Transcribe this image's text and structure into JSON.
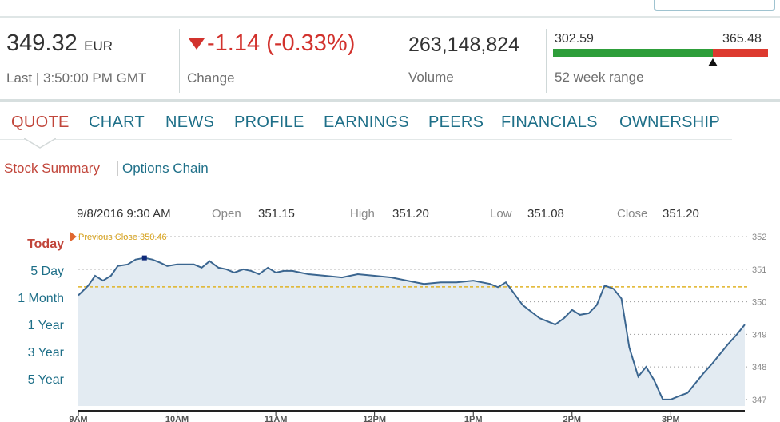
{
  "quote": {
    "price": "349.32",
    "currency": "EUR",
    "last_time": "Last | 3:50:00 PM GMT",
    "change": "-1.14 (-0.33%)",
    "change_label": "Change",
    "change_direction_icon": "triangle-down-icon",
    "volume": "263,148,824",
    "volume_label": "Volume",
    "week52_low": "302.59",
    "week52_high": "365.48",
    "week52_label": "52 week range",
    "week52_marker_icon": "triangle-up-icon"
  },
  "tabs": [
    "QUOTE",
    "CHART",
    "NEWS",
    "PROFILE",
    "EARNINGS",
    "PEERS",
    "FINANCIALS",
    "OWNERSHIP"
  ],
  "active_tab": "QUOTE",
  "subnav": {
    "stock_summary": "Stock Summary",
    "options_chain": "Options Chain"
  },
  "ohlc": {
    "datetime": "9/8/2016 9:30 AM",
    "open_label": "Open",
    "open": "351.15",
    "high_label": "High",
    "high": "351.20",
    "low_label": "Low",
    "low": "351.08",
    "close_label": "Close",
    "close": "351.20"
  },
  "ranges": [
    "Today",
    "5 Day",
    "1 Month",
    "1 Year",
    "3 Year",
    "5 Year"
  ],
  "active_range": "Today",
  "colors": {
    "accent_red": "#d2322d",
    "link_blue": "#1e6f88",
    "line": "#3b6690",
    "fill": "#e3ebf2",
    "prev_close": "#e0b325",
    "range_green": "#2e9e3a",
    "range_red": "#dd3a2f"
  },
  "chart_data": {
    "type": "area",
    "previous_close_label": "Previous Close 350.46",
    "previous_close": 350.46,
    "ylim": [
      346.8,
      352.2
    ],
    "y_ticks": [
      352,
      351,
      350,
      349,
      348,
      347
    ],
    "x_ticks": [
      "9AM",
      "10AM",
      "11AM",
      "12PM",
      "1PM",
      "2PM",
      "3PM"
    ],
    "x_tick_hours": [
      9,
      10,
      11,
      12,
      13,
      14,
      15
    ],
    "xlim": [
      9,
      15.75
    ],
    "grid": true,
    "series": [
      {
        "x": [
          9.0,
          9.1,
          9.17,
          9.25,
          9.33,
          9.4,
          9.5,
          9.58,
          9.67,
          9.75,
          9.83,
          9.9,
          10.0,
          10.17,
          10.25,
          10.33,
          10.42,
          10.5,
          10.58,
          10.67,
          10.75,
          10.83,
          10.92,
          11.0,
          11.08,
          11.17,
          11.25,
          11.33,
          11.5,
          11.67,
          11.83,
          12.0,
          12.17,
          12.33,
          12.5,
          12.67,
          12.83,
          13.0,
          13.17,
          13.25,
          13.33,
          13.5,
          13.67,
          13.83,
          13.92,
          14.0,
          14.08,
          14.17,
          14.25,
          14.33,
          14.42,
          14.5,
          14.58,
          14.67,
          14.75,
          14.83,
          14.92,
          15.0,
          15.08,
          15.17,
          15.25,
          15.33,
          15.42,
          15.5,
          15.58,
          15.67,
          15.75
        ],
        "values": [
          350.2,
          350.5,
          350.8,
          350.65,
          350.8,
          351.1,
          351.15,
          351.3,
          351.35,
          351.3,
          351.2,
          351.1,
          351.15,
          351.15,
          351.05,
          351.25,
          351.05,
          351.0,
          350.9,
          351.0,
          350.95,
          350.85,
          351.05,
          350.9,
          350.95,
          350.95,
          350.9,
          350.85,
          350.8,
          350.75,
          350.85,
          350.8,
          350.75,
          350.65,
          350.55,
          350.6,
          350.6,
          350.65,
          350.55,
          350.45,
          350.6,
          349.9,
          349.5,
          349.3,
          349.5,
          349.75,
          349.6,
          349.65,
          349.9,
          350.5,
          350.4,
          350.1,
          348.6,
          347.7,
          348.0,
          347.6,
          347.0,
          347.0,
          347.1,
          347.2,
          347.5,
          347.8,
          348.1,
          348.4,
          348.7,
          349.0,
          349.3
        ]
      }
    ],
    "marker_point": {
      "x": 9.67,
      "value": 351.35
    }
  }
}
